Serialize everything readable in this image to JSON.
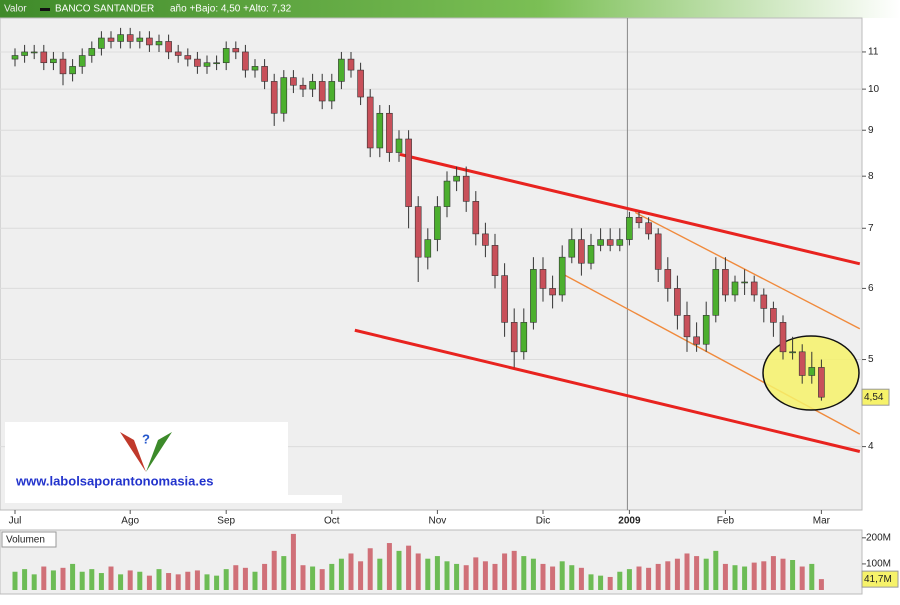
{
  "header": {
    "label": "Valor",
    "name": "BANCO SANTANDER",
    "range": "año +Bajo: 4,50 +Alto: 7,32"
  },
  "watermark": {
    "url": "www.labolsaporantonomasia.es"
  },
  "chart_data": [
    {
      "type": "candlestick",
      "categories": [
        "Jul",
        null,
        null,
        null,
        null,
        null,
        null,
        null,
        null,
        null,
        null,
        null,
        "Ago",
        null,
        null,
        null,
        null,
        null,
        null,
        null,
        null,
        null,
        "Sep",
        null,
        null,
        null,
        null,
        null,
        null,
        null,
        null,
        null,
        null,
        "Oct",
        null,
        null,
        null,
        null,
        null,
        null,
        null,
        null,
        null,
        null,
        "Nov",
        null,
        null,
        null,
        null,
        null,
        null,
        null,
        null,
        null,
        null,
        "Dic",
        null,
        null,
        null,
        null,
        null,
        null,
        null,
        null,
        "2009",
        null,
        null,
        null,
        null,
        null,
        null,
        null,
        null,
        null,
        "Feb",
        null,
        null,
        null,
        null,
        null,
        null,
        null,
        null,
        null,
        "Mar"
      ],
      "open": [
        10.8,
        10.9,
        11.0,
        11.0,
        10.7,
        10.8,
        10.4,
        10.6,
        10.9,
        11.1,
        11.4,
        11.3,
        11.5,
        11.3,
        11.4,
        11.2,
        11.3,
        11.0,
        10.9,
        10.8,
        10.6,
        10.7,
        10.7,
        11.1,
        11.0,
        10.5,
        10.6,
        10.2,
        9.4,
        10.3,
        10.1,
        10.0,
        10.2,
        9.7,
        10.2,
        10.8,
        10.5,
        9.8,
        8.6,
        9.4,
        8.5,
        8.8,
        7.4,
        6.5,
        6.8,
        7.4,
        7.9,
        8.0,
        7.5,
        6.9,
        6.7,
        6.2,
        5.5,
        5.1,
        5.5,
        6.3,
        6.0,
        5.9,
        6.5,
        6.8,
        6.4,
        6.7,
        6.8,
        6.7,
        6.8,
        7.2,
        7.1,
        6.9,
        6.3,
        6.0,
        5.6,
        5.3,
        5.2,
        5.6,
        6.3,
        5.9,
        6.1,
        6.1,
        5.9,
        5.7,
        5.5,
        5.1,
        5.1,
        4.8,
        4.9
      ],
      "high": [
        11.1,
        11.2,
        11.2,
        11.2,
        11.0,
        11.0,
        10.8,
        11.1,
        11.3,
        11.6,
        11.6,
        11.7,
        11.7,
        11.6,
        11.6,
        11.5,
        11.5,
        11.2,
        11.1,
        11.0,
        10.9,
        10.9,
        11.3,
        11.3,
        11.2,
        10.8,
        10.8,
        10.4,
        10.5,
        10.5,
        10.3,
        10.4,
        10.4,
        10.4,
        11.0,
        11.0,
        10.7,
        10.0,
        9.6,
        9.6,
        9.0,
        9.0,
        7.6,
        7.0,
        7.6,
        8.1,
        8.2,
        8.2,
        7.7,
        7.1,
        6.9,
        6.4,
        5.7,
        5.7,
        6.5,
        6.5,
        6.2,
        6.7,
        7.0,
        7.0,
        6.9,
        7.0,
        7.0,
        7.0,
        7.3,
        7.3,
        7.2,
        7.0,
        6.5,
        6.2,
        5.8,
        5.5,
        5.8,
        6.5,
        6.5,
        6.2,
        6.3,
        6.2,
        6.0,
        5.8,
        5.6,
        5.3,
        5.2,
        5.1,
        5.0
      ],
      "low": [
        10.6,
        10.7,
        10.8,
        10.5,
        10.5,
        10.1,
        10.2,
        10.4,
        10.7,
        10.9,
        11.1,
        11.1,
        11.1,
        11.1,
        11.0,
        11.0,
        10.8,
        10.7,
        10.6,
        10.4,
        10.4,
        10.5,
        10.5,
        10.8,
        10.3,
        10.3,
        10.0,
        9.1,
        9.2,
        9.9,
        9.8,
        9.8,
        9.5,
        9.5,
        10.0,
        10.3,
        9.6,
        8.4,
        8.4,
        8.3,
        8.3,
        7.0,
        6.1,
        6.3,
        6.6,
        7.2,
        7.7,
        7.3,
        6.7,
        6.5,
        6.0,
        5.3,
        4.9,
        5.0,
        5.4,
        5.8,
        5.7,
        5.8,
        6.4,
        6.2,
        6.3,
        6.6,
        6.6,
        6.6,
        6.7,
        7.0,
        6.8,
        6.1,
        5.8,
        5.4,
        5.1,
        5.1,
        5.1,
        5.5,
        5.8,
        5.8,
        5.9,
        5.8,
        5.5,
        5.3,
        5.0,
        5.0,
        4.7,
        4.7,
        4.5
      ],
      "close": [
        10.9,
        11.0,
        11.0,
        10.7,
        10.8,
        10.4,
        10.6,
        10.9,
        11.1,
        11.4,
        11.3,
        11.5,
        11.3,
        11.4,
        11.2,
        11.3,
        11.0,
        10.9,
        10.8,
        10.6,
        10.7,
        10.7,
        11.1,
        11.0,
        10.5,
        10.6,
        10.2,
        9.4,
        10.3,
        10.1,
        10.0,
        10.2,
        9.7,
        10.2,
        10.8,
        10.5,
        9.8,
        8.6,
        9.4,
        8.5,
        8.8,
        7.4,
        6.5,
        6.8,
        7.4,
        7.9,
        8.0,
        7.5,
        6.9,
        6.7,
        6.2,
        5.5,
        5.1,
        5.5,
        6.3,
        6.0,
        5.9,
        6.5,
        6.8,
        6.4,
        6.7,
        6.8,
        6.7,
        6.8,
        7.2,
        7.1,
        6.9,
        6.3,
        6.0,
        5.6,
        5.3,
        5.2,
        5.6,
        6.3,
        5.9,
        6.1,
        6.1,
        5.9,
        5.7,
        5.5,
        5.1,
        5.1,
        4.8,
        4.9,
        4.54
      ],
      "close_label": "4,54",
      "up_color": "#4caf2e",
      "down_color": "#c8505a",
      "ylim": [
        3.4,
        12
      ],
      "yticks": [
        4,
        5,
        6,
        7,
        8,
        9,
        10,
        11
      ],
      "log_scale": true,
      "grid": true,
      "trendlines": [
        {
          "x": [
            40.1,
            88.0
          ],
          "y": [
            8.46,
            6.39
          ],
          "color": "#e8231f"
        },
        {
          "x": [
            35.4,
            88.0
          ],
          "y": [
            5.39,
            3.95
          ],
          "color": "#e8231f"
        },
        {
          "x": [
            64.6,
            88.0
          ],
          "y": [
            7.29,
            5.41
          ],
          "color": "#f08a3c"
        },
        {
          "x": [
            57.0,
            88.0
          ],
          "y": [
            6.23,
            4.13
          ],
          "color": "#f08a3c"
        }
      ]
    },
    {
      "type": "bar",
      "title": "Volumen",
      "values": [
        70,
        80,
        60,
        90,
        75,
        85,
        100,
        70,
        80,
        65,
        90,
        60,
        75,
        70,
        55,
        80,
        65,
        60,
        70,
        75,
        60,
        55,
        80,
        95,
        85,
        70,
        100,
        150,
        130,
        215,
        95,
        90,
        80,
        100,
        120,
        140,
        110,
        160,
        120,
        180,
        150,
        170,
        140,
        120,
        130,
        110,
        100,
        95,
        125,
        110,
        100,
        140,
        150,
        130,
        120,
        100,
        90,
        110,
        95,
        85,
        60,
        55,
        50,
        70,
        80,
        90,
        85,
        100,
        110,
        120,
        140,
        130,
        120,
        150,
        100,
        95,
        90,
        105,
        110,
        130,
        120,
        115,
        90,
        100,
        41.7
      ],
      "value_label": "41,7M",
      "ylim": [
        0,
        230
      ],
      "yticks": [
        {
          "value": 200,
          "label": "200M"
        },
        {
          "value": 100,
          "label": "100M"
        }
      ]
    }
  ]
}
